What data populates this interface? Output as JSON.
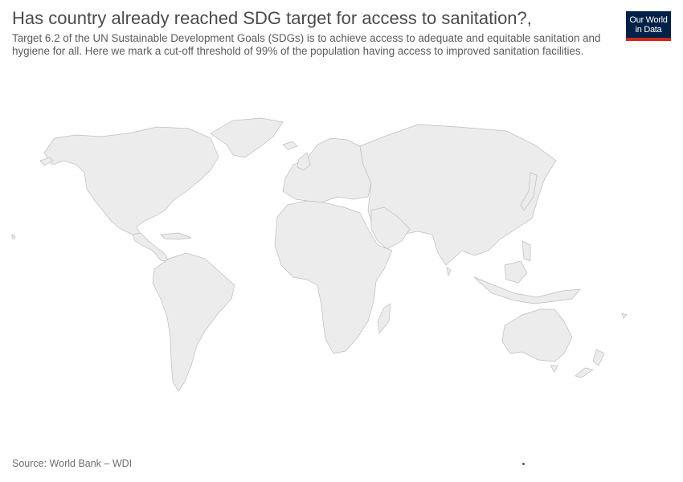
{
  "header": {
    "title": "Has country already reached SDG target for access to sanitation?,",
    "subtitle": "Target 6.2 of the UN Sustainable Development Goals (SDGs) is to achieve access to adequate and equitable sanitation and hygiene for all. Here we mark a cut-off threshold of 99% of the population having access to improved sanitation facilities."
  },
  "logo": {
    "line1": "Our World",
    "line2": "in Data"
  },
  "map": {
    "fill_color": "#ececec",
    "border_color": "#bdbdbd"
  },
  "footer": {
    "source": "Source: World Bank – WDI"
  }
}
